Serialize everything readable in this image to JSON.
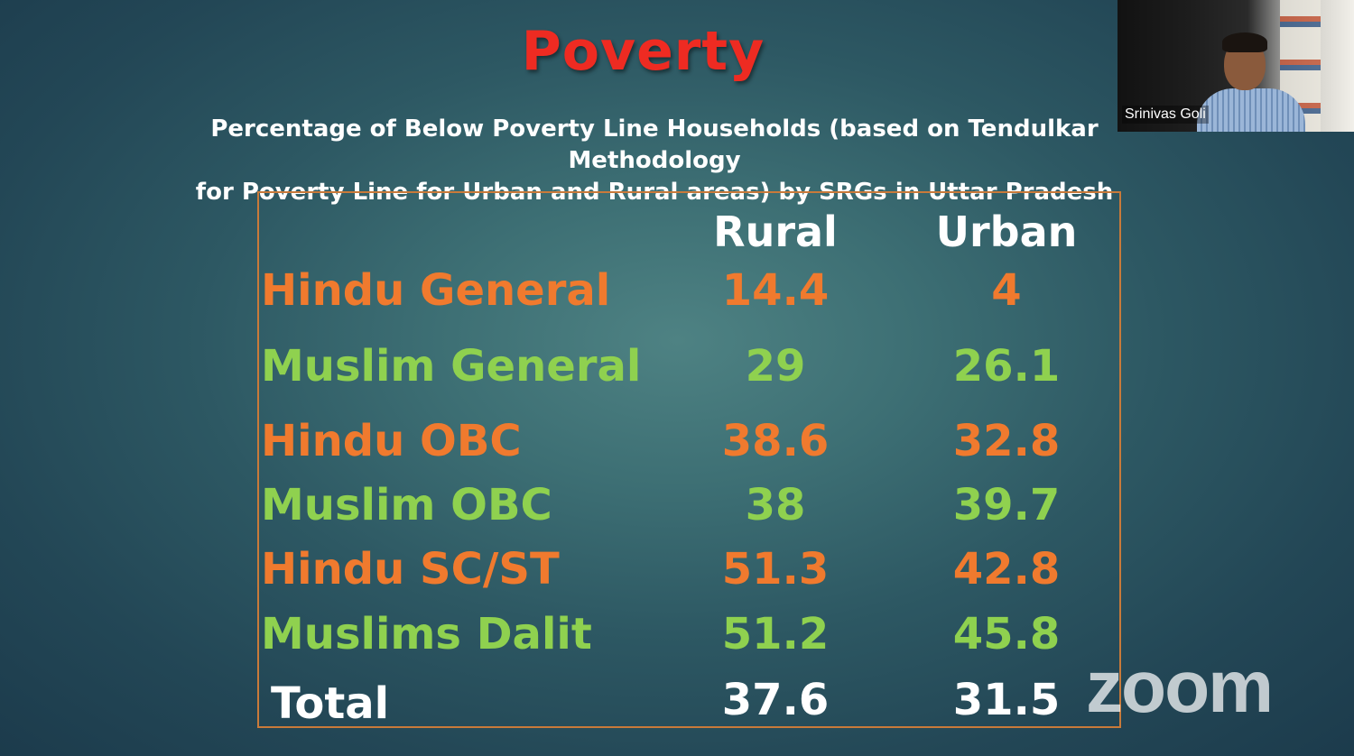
{
  "slide": {
    "title": "Poverty",
    "subtitle_line1": "Percentage of Below Poverty Line Households (based on Tendulkar Methodology",
    "subtitle_line2": "for Poverty Line for Urban and Rural areas)  by SRGs in Uttar Pradesh",
    "table": {
      "headers": [
        "Rural",
        "Urban"
      ],
      "rows": [
        {
          "label": "Hindu General",
          "rural": "14.4",
          "urban": "4"
        },
        {
          "label": "Muslim General",
          "rural": "29",
          "urban": "26.1"
        },
        {
          "label": "Hindu OBC",
          "rural": "38.6",
          "urban": "32.8"
        },
        {
          "label": "Muslim OBC",
          "rural": "38",
          "urban": "39.7"
        },
        {
          "label": "Hindu SC/ST",
          "rural": "51.3",
          "urban": "42.8"
        },
        {
          "label": "Muslims Dalit",
          "rural": "51.2",
          "urban": "45.8"
        },
        {
          "label": "Total",
          "rural": "37.6",
          "urban": "31.5"
        }
      ]
    },
    "colors": {
      "title": "#ee2b22",
      "hindu_rows": "#f07a2e",
      "muslim_rows": "#8fd14f",
      "total_row": "#ffffff",
      "table_border": "#c97a3a"
    }
  },
  "video_tile": {
    "participant_name": "Srinivas Goli"
  },
  "watermark": {
    "text": "zoom"
  }
}
